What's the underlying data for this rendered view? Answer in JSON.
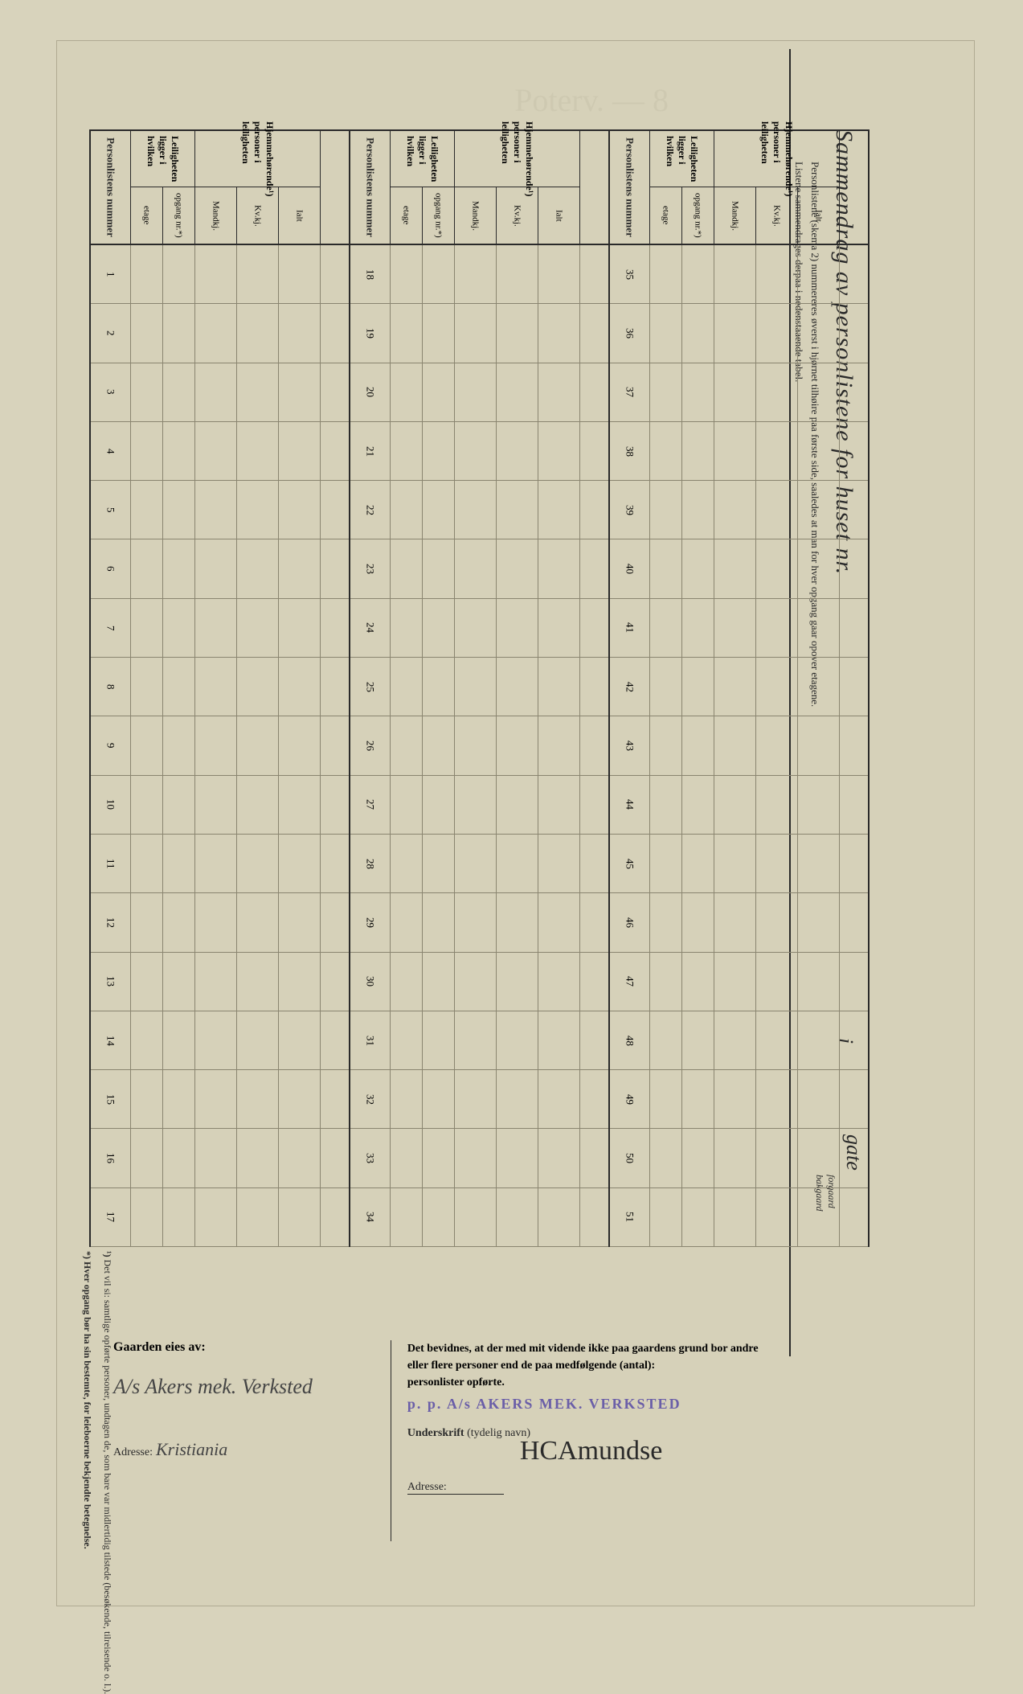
{
  "title_vertical": "Sammendrag av personlistene for huset nr.",
  "in_label": "i",
  "gate_label": "gate",
  "gate_sub1": "forgaard",
  "gate_sub2": "bakgaard",
  "instruction_line1": "Personlistene (skema 2) nummereres øverst i hjørnet tilhøire paa første side, saaledes at man for hver opgang gaar opover etagene.",
  "instruction_line2": "Listene sammendrages derpaa i nedenstaaende tabel.",
  "header": {
    "personlist_num": "Personlistens nummer",
    "leilighet_group": "Leiligheten ligger i hvilken",
    "leilighet_sub1": "etage",
    "leilighet_sub2": "opgang nr.*)",
    "hjemme_group": "Hjemmehørende¹) personer i leiligheten",
    "hjemme_sub1": "Mandkj.",
    "hjemme_sub2": "Kv.kj.",
    "hjemme_sub3": "Ialt"
  },
  "blocks": [
    {
      "start": 1,
      "end": 17
    },
    {
      "start": 18,
      "end": 34
    },
    {
      "start": 35,
      "end": 51
    }
  ],
  "footnote1_marker": "¹)",
  "footnote1_text": "Det vil si: samtlige opførte personer, undtagen de, som bare var midlertidig tilstede (besøkende, tilreisende o. l.).",
  "footnote2_marker": "*)",
  "footnote2_text": "Hver opgang bør ha sin bestemte, for leieboerne bekjendte betegnelse.",
  "bottom": {
    "owner_label": "Gaarden eies av:",
    "owner_value": "A/s Akers mek. Verksted",
    "adresse_label": "Adresse:",
    "adresse_value": "Kristiania",
    "witness_text": "Det bevidnes, at der med mit vidende ikke paa gaardens grund bor andre eller flere personer end de paa medfølgende (antal):",
    "witness_suffix": "personlister opførte.",
    "stamp": "p. p. A/s AKERS MEK. VERKSTED",
    "underskrift_label": "Underskrift",
    "underskrift_hint": "(tydelig navn)",
    "signature": "HCAmundse",
    "adresse2_label": "Adresse:"
  },
  "colors": {
    "page_bg": "#d6d1b9",
    "ink": "#2a2a2a",
    "stamp": "#6a5ea8",
    "gridline": "#8a8570"
  }
}
